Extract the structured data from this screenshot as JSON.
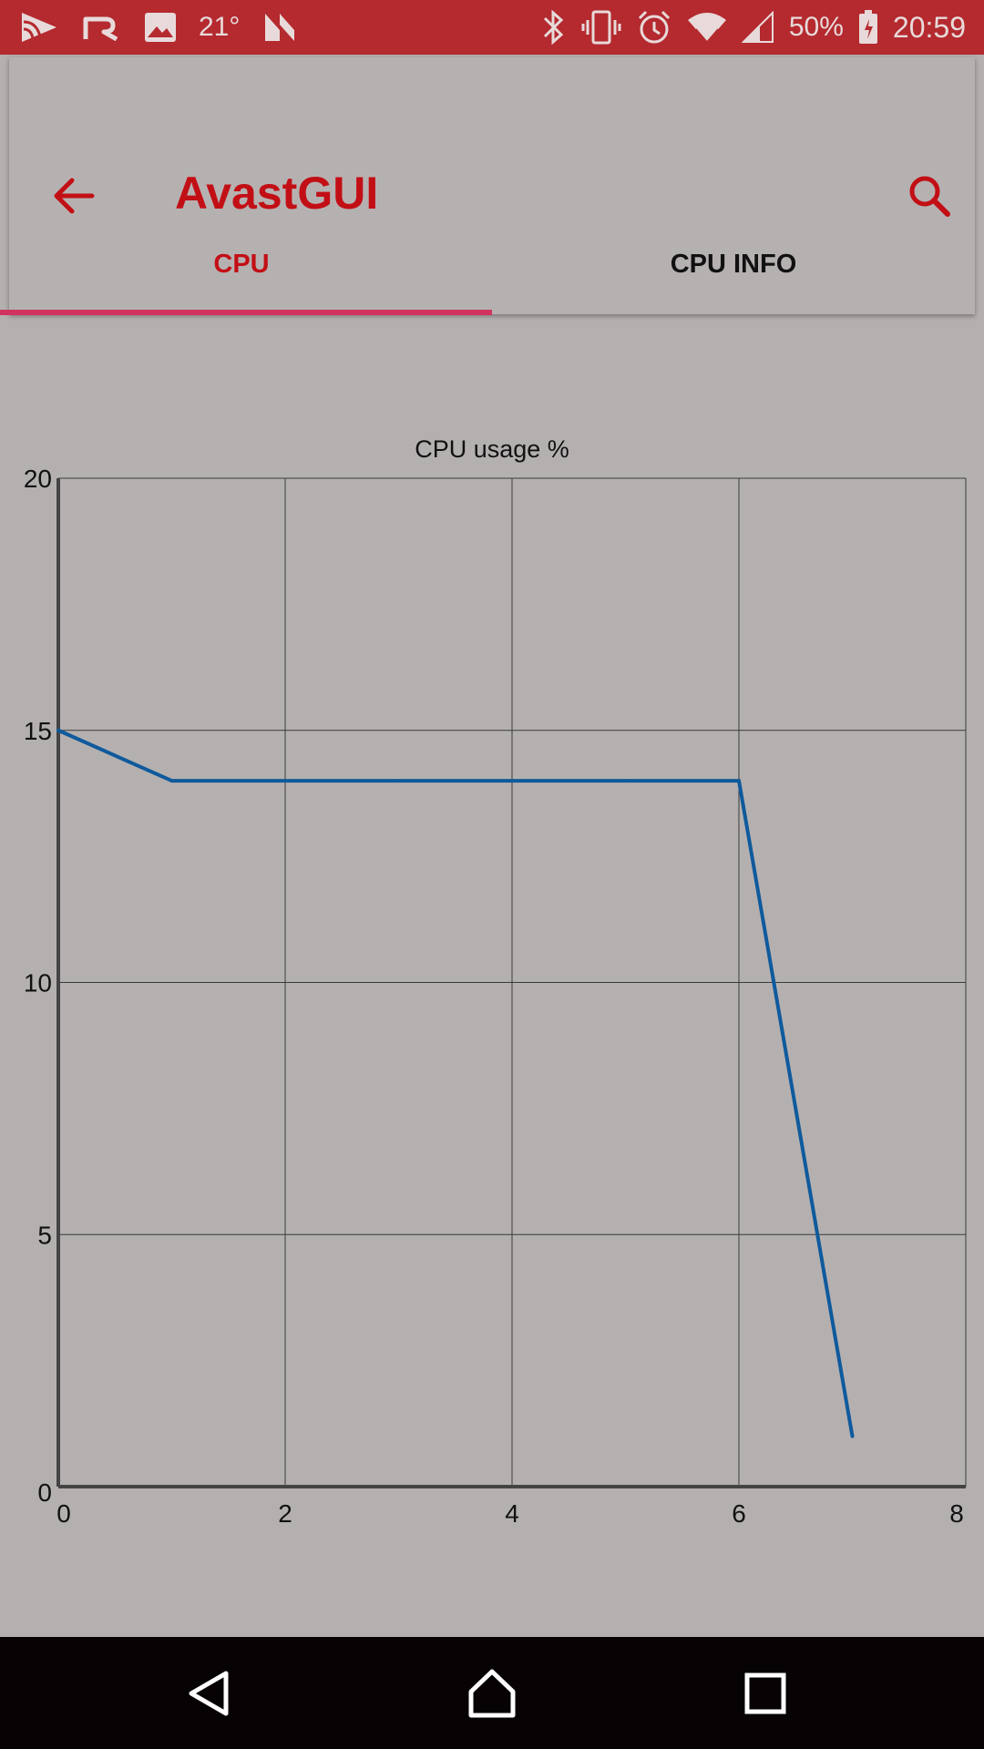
{
  "status_bar": {
    "temperature": "21°",
    "battery_percent": "50%",
    "time": "20:59",
    "left_icons": [
      "play-store-icon",
      "rakuten-icon",
      "gallery-icon",
      "temperature-icon",
      "n-app-icon"
    ],
    "right_icons": [
      "bluetooth-icon",
      "vibrate-icon",
      "alarm-icon",
      "wifi-icon",
      "signal-icon",
      "battery-icon"
    ]
  },
  "app_bar": {
    "title": "AvastGUI",
    "back_icon": "arrow-back-icon",
    "search_icon": "search-icon"
  },
  "tabs": [
    {
      "label": "CPU",
      "selected": true
    },
    {
      "label": "CPU INFO",
      "selected": false
    }
  ],
  "colors": {
    "accent": "#c20f15",
    "status_bar": "#b42a2f",
    "tab_indicator": "#d0345e",
    "line": "#0f5a9c",
    "background": "#b5b0b0"
  },
  "chart_data": {
    "type": "line",
    "title": "CPU usage %",
    "xlabel": "",
    "ylabel": "",
    "x": [
      0,
      1,
      2,
      3,
      4,
      5,
      6,
      7
    ],
    "series": [
      {
        "values": [
          15,
          14,
          14,
          14,
          14,
          14,
          14,
          1
        ]
      }
    ],
    "xlim": [
      0,
      8
    ],
    "ylim": [
      0,
      20
    ],
    "x_ticks": [
      "0",
      "2",
      "4",
      "6",
      "8"
    ],
    "y_ticks": [
      "0",
      "5",
      "10",
      "15",
      "20"
    ],
    "grid": true,
    "legend": "none"
  },
  "nav_bar": {
    "buttons": [
      "back-nav-icon",
      "home-nav-icon",
      "recents-nav-icon"
    ]
  }
}
